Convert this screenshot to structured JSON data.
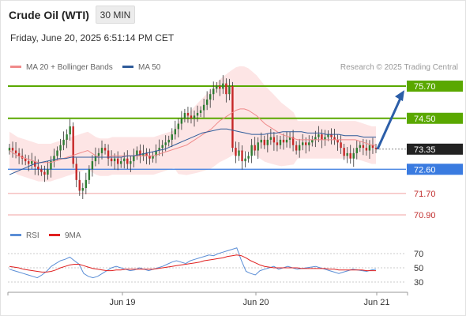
{
  "header": {
    "title": "Crude Oil (WTI)",
    "timeframe": "30 MIN",
    "datetime": "Friday, June 20, 2025 6:51:14 PM CET"
  },
  "legend": {
    "ma20_label": "MA 20 + Bollinger Bands",
    "ma20_color": "#f08a8a",
    "ma50_label": "MA 50",
    "ma50_color": "#2e5b9a",
    "copyright": "Research © 2025 Trading Central"
  },
  "price_levels": [
    {
      "label": "75.70",
      "value": 75.7,
      "kind": "resistance",
      "color": "#5aa800"
    },
    {
      "label": "74.50",
      "value": 74.5,
      "kind": "resistance",
      "color": "#5aa800"
    },
    {
      "label": "73.35",
      "value": 73.35,
      "kind": "last",
      "color": "#222222"
    },
    {
      "label": "72.60",
      "value": 72.6,
      "kind": "pivot",
      "color": "#3a7be0"
    },
    {
      "label": "71.70",
      "value": 71.7,
      "kind": "support",
      "color": "#e06060"
    },
    {
      "label": "70.90",
      "value": 70.9,
      "kind": "support",
      "color": "#e06060"
    }
  ],
  "rsi_panel": {
    "rsi_label": "RSI",
    "rsi_color": "#5b8ed6",
    "ma_label": "9MA",
    "ma_color": "#e02020",
    "levels": [
      "70",
      "50",
      "30"
    ]
  },
  "x_axis": [
    "Jun 19",
    "Jun 20",
    "Jun 21"
  ],
  "chart_data": {
    "type": "candlestick",
    "price_closes": [
      73.4,
      73.3,
      73.2,
      73.1,
      73.0,
      72.9,
      72.8,
      72.9,
      72.7,
      72.6,
      72.5,
      72.4,
      72.6,
      72.9,
      73.1,
      73.3,
      73.5,
      73.7,
      73.9,
      74.2,
      72.8,
      72.2,
      71.8,
      71.9,
      72.2,
      72.6,
      72.9,
      73.1,
      73.2,
      73.4,
      73.3,
      73.0,
      72.9,
      73.0,
      72.8,
      72.9,
      73.0,
      72.8,
      72.9,
      73.1,
      73.3,
      73.1,
      73.2,
      73.1,
      73.0,
      73.1,
      73.3,
      73.4,
      73.5,
      73.6,
      73.7,
      73.9,
      74.1,
      74.3,
      74.5,
      74.7,
      74.6,
      74.5,
      74.6,
      74.7,
      74.8,
      75.0,
      75.2,
      75.4,
      75.6,
      75.7,
      75.6,
      75.8,
      75.4,
      75.7,
      73.4,
      73.1,
      73.3,
      72.9,
      73.0,
      73.1,
      73.5,
      73.3,
      73.6,
      73.7,
      73.5,
      73.7,
      73.8,
      73.6,
      73.5,
      73.7,
      73.6,
      73.7,
      73.8,
      73.5,
      73.3,
      73.5,
      73.6,
      73.5,
      73.6,
      73.7,
      73.8,
      73.9,
      73.7,
      73.8,
      73.9,
      73.8,
      73.7,
      73.6,
      73.4,
      73.1,
      73.2,
      73.0,
      73.2,
      73.4,
      73.5,
      73.4,
      73.3,
      73.5,
      73.4,
      73.35
    ],
    "ma20": [
      73.3,
      73.2,
      73.1,
      73.05,
      73.0,
      72.95,
      72.9,
      72.85,
      72.85,
      72.85,
      72.85,
      72.9,
      72.95,
      73.0,
      73.05,
      73.1,
      73.15,
      73.2,
      73.25,
      73.3,
      73.2,
      73.1,
      73.05,
      73.05,
      73.05,
      73.1,
      73.1,
      73.1,
      73.1,
      73.1,
      73.1,
      73.1,
      73.1,
      73.1,
      73.1,
      73.1,
      73.15,
      73.2,
      73.25,
      73.3,
      73.35,
      73.4,
      73.45,
      73.5,
      73.6,
      73.7,
      73.8,
      73.9,
      74.0,
      74.1,
      74.25,
      74.4,
      74.5,
      74.6,
      74.7,
      74.8,
      74.85,
      74.85,
      74.8,
      74.7,
      74.6,
      74.45,
      74.3,
      74.2,
      74.1,
      74.0,
      73.9,
      73.85,
      73.8,
      73.75,
      73.7,
      73.7,
      73.7,
      73.7,
      73.7,
      73.7,
      73.7,
      73.7,
      73.7,
      73.7,
      73.7,
      73.7,
      73.7,
      73.7,
      73.7,
      73.65,
      73.6,
      73.55,
      73.5,
      73.5
    ],
    "ma50": [
      72.4,
      72.5,
      72.6,
      72.7,
      72.8,
      72.85,
      72.9,
      72.95,
      73.0,
      73.0,
      73.05,
      73.05,
      73.05,
      73.05,
      73.05,
      73.05,
      73.05,
      73.05,
      73.05,
      73.1,
      73.1,
      73.15,
      73.2,
      73.25,
      73.3,
      73.35,
      73.45,
      73.55,
      73.65,
      73.75,
      73.85,
      73.95,
      74.0,
      74.05,
      74.1,
      74.1,
      74.05,
      74.0,
      73.95,
      73.9,
      73.9,
      73.9,
      73.95,
      73.95,
      74.0,
      74.0,
      74.0,
      74.0,
      73.95,
      73.95,
      73.95,
      73.9,
      73.9,
      73.9,
      73.85,
      73.85,
      73.85,
      73.8,
      73.8,
      73.8
    ],
    "rsi": [
      48,
      46,
      44,
      42,
      40,
      38,
      36,
      40,
      45,
      52,
      56,
      60,
      62,
      65,
      60,
      55,
      42,
      38,
      36,
      38,
      42,
      46,
      50,
      52,
      50,
      48,
      46,
      47,
      50,
      48,
      46,
      48,
      50,
      52,
      55,
      58,
      60,
      58,
      56,
      60,
      62,
      64,
      66,
      68,
      67,
      70,
      72,
      74,
      76,
      78,
      60,
      45,
      42,
      40,
      46,
      48,
      50,
      52,
      48,
      50,
      52,
      50,
      48,
      49,
      50,
      51,
      52,
      50,
      48,
      46,
      44,
      42,
      44,
      46,
      48,
      47,
      46,
      45,
      47,
      48
    ],
    "rsi_ma": [
      52,
      51,
      50,
      48,
      47,
      46,
      45,
      44,
      44,
      45,
      47,
      50,
      52,
      54,
      55,
      55,
      53,
      51,
      49,
      48,
      47,
      46,
      46,
      47,
      47,
      48,
      48,
      48,
      48,
      48,
      48,
      48,
      49,
      50,
      51,
      52,
      53,
      54,
      55,
      56,
      57,
      58,
      60,
      61,
      62,
      63,
      64,
      66,
      67,
      68,
      67,
      64,
      60,
      57,
      54,
      52,
      51,
      50,
      50,
      50,
      50,
      50,
      50,
      49,
      49,
      49,
      49,
      49,
      49,
      48,
      48,
      47,
      47,
      47,
      47,
      47,
      47,
      46,
      46,
      46
    ],
    "series": [
      {
        "name": "MA 20 + Bollinger Bands"
      },
      {
        "name": "MA 50"
      }
    ],
    "ylim": [
      70.8,
      76.0
    ],
    "rsi_ylim": [
      20,
      90
    ],
    "forecast_target": 75.7
  }
}
